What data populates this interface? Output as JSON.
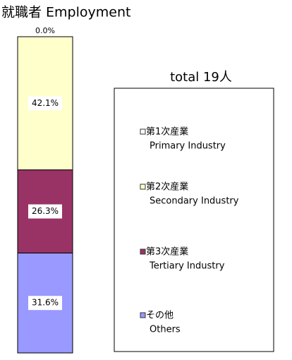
{
  "chart_data": {
    "type": "stacked_bar",
    "title": "就職者 Employment",
    "legend_title": "total 19人",
    "ylim": [
      0,
      100
    ],
    "series": [
      {
        "name": "第1次産業",
        "name_en": "Primary Industry",
        "color": "#ffffff",
        "values": [
          0.0
        ],
        "value_labels": [
          "0.0%"
        ]
      },
      {
        "name": "第2次産業",
        "name_en": "Secondary Industry",
        "color": "#ffffcc",
        "values": [
          42.1
        ],
        "value_labels": [
          "42.1%"
        ]
      },
      {
        "name": "第3次産業",
        "name_en": "Tertiary Industry",
        "color": "#993366",
        "values": [
          26.3
        ],
        "value_labels": [
          "26.3%"
        ]
      },
      {
        "name": "その他",
        "name_en": "Others",
        "color": "#9999ff",
        "values": [
          31.6
        ],
        "value_labels": [
          "31.6%"
        ]
      }
    ]
  }
}
